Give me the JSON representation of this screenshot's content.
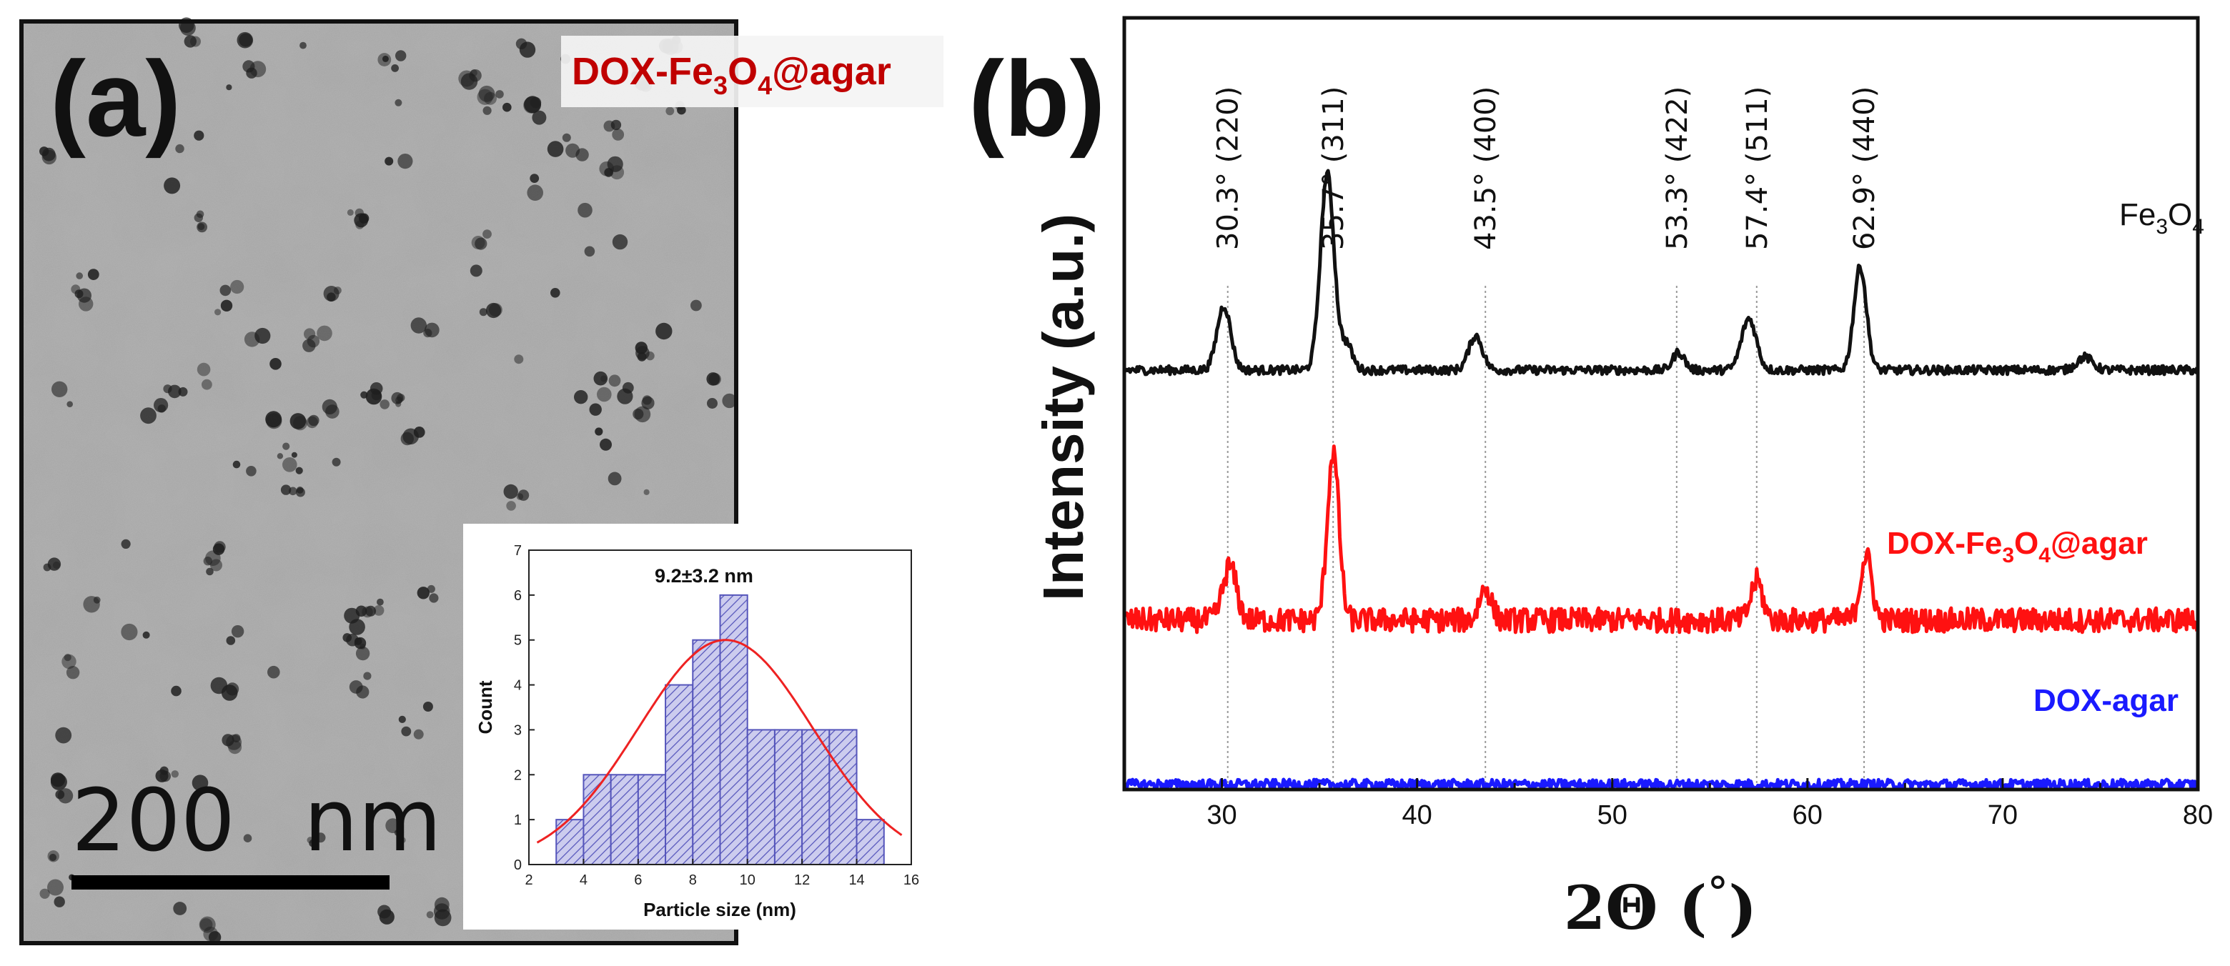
{
  "panel_a": {
    "label": "(a)",
    "sample_label_prefix": "DOX-Fe",
    "sample_label_sub1": "3",
    "sample_label_mid": "O",
    "sample_label_sub2": "4",
    "sample_label_suffix": "@agar",
    "scalebar_value": "200",
    "scalebar_unit": "nm",
    "sample_label_color": "#c00000"
  },
  "panel_b": {
    "label": "(b)"
  },
  "chart_data": [
    {
      "type": "bar",
      "title": "9.2±3.2 nm",
      "xlabel": "Particle size (nm)",
      "ylabel": "Count",
      "xlim": [
        2,
        16
      ],
      "ylim": [
        0,
        7
      ],
      "xticks": [
        "2",
        "4",
        "6",
        "8",
        "10",
        "12",
        "14",
        "16"
      ],
      "yticks": [
        "0",
        "1",
        "2",
        "3",
        "4",
        "5",
        "6",
        "7"
      ],
      "bins": [
        {
          "x0": 3,
          "x1": 4,
          "count": 1
        },
        {
          "x0": 4,
          "x1": 5,
          "count": 2
        },
        {
          "x0": 5,
          "x1": 6,
          "count": 2
        },
        {
          "x0": 6,
          "x1": 7,
          "count": 2
        },
        {
          "x0": 7,
          "x1": 8,
          "count": 4
        },
        {
          "x0": 8,
          "x1": 9,
          "count": 5
        },
        {
          "x0": 9,
          "x1": 10,
          "count": 6
        },
        {
          "x0": 10,
          "x1": 11,
          "count": 3
        },
        {
          "x0": 11,
          "x1": 12,
          "count": 3
        },
        {
          "x0": 12,
          "x1": 13,
          "count": 3
        },
        {
          "x0": 13,
          "x1": 14,
          "count": 3
        },
        {
          "x0": 14,
          "x1": 15,
          "count": 1
        }
      ],
      "fit": {
        "type": "gaussian",
        "mean": 9.2,
        "sd": 3.2,
        "amplitude": 5,
        "color": "#ee2222"
      },
      "bar_color": "#5555bb"
    },
    {
      "type": "line",
      "xlabel_main": "2Θ (",
      "xlabel_unit": "°",
      "xlabel_close": ")",
      "ylabel": "Intensity (a.u.)",
      "xlim": [
        25,
        80
      ],
      "xticks": [
        "30",
        "40",
        "50",
        "60",
        "70",
        "80"
      ],
      "reference_lines": [
        {
          "x": 30.3,
          "label": "30.3° (220)"
        },
        {
          "x": 35.7,
          "label": "35.7° (311)"
        },
        {
          "x": 43.5,
          "label": "43.5° (400)"
        },
        {
          "x": 53.3,
          "label": "53.3° (422)"
        },
        {
          "x": 57.4,
          "label": "57.4° (511)"
        },
        {
          "x": 62.9,
          "label": "62.9° (440)"
        }
      ],
      "series": [
        {
          "name": "Fe3O4",
          "label_main": "Fe",
          "label_sub1": "3",
          "label_mid": "O",
          "label_sub2": "4",
          "color": "#111111",
          "baseline": 0,
          "noise": 0.06,
          "peaks": [
            {
              "x": 30.1,
              "h": 0.9,
              "w": 0.35
            },
            {
              "x": 35.4,
              "h": 2.75,
              "w": 0.35
            },
            {
              "x": 36.4,
              "h": 0.35,
              "w": 0.3
            },
            {
              "x": 43.0,
              "h": 0.48,
              "w": 0.35
            },
            {
              "x": 53.4,
              "h": 0.25,
              "w": 0.3
            },
            {
              "x": 57.0,
              "h": 0.72,
              "w": 0.38
            },
            {
              "x": 62.7,
              "h": 1.45,
              "w": 0.32
            },
            {
              "x": 74.2,
              "h": 0.18,
              "w": 0.4
            }
          ]
        },
        {
          "name": "DOX-Fe3O4@agar",
          "label_main": "DOX-Fe",
          "label_sub1": "3",
          "label_mid": "O",
          "label_sub2": "4",
          "label_suffix": "@agar",
          "color": "#ff1111",
          "baseline": -3.5,
          "noise": 0.17,
          "peaks": [
            {
              "x": 30.4,
              "h": 0.75,
              "w": 0.35
            },
            {
              "x": 35.7,
              "h": 2.35,
              "w": 0.3
            },
            {
              "x": 43.5,
              "h": 0.45,
              "w": 0.3
            },
            {
              "x": 57.4,
              "h": 0.55,
              "w": 0.3
            },
            {
              "x": 63.0,
              "h": 0.9,
              "w": 0.3
            }
          ]
        },
        {
          "name": "DOX-agar",
          "label_main": "DOX-agar",
          "color": "#1a1aff",
          "baseline": -5.8,
          "noise": 0.07,
          "peaks": []
        }
      ]
    }
  ]
}
